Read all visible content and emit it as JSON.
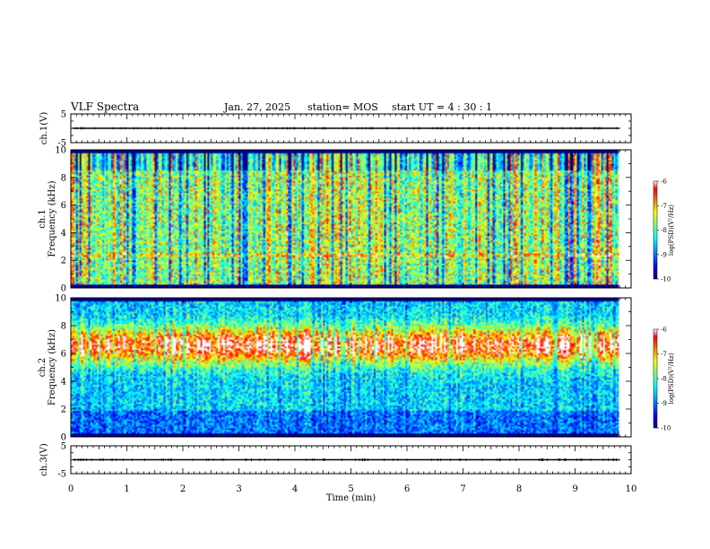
{
  "header": {
    "title": "VLF Spectra",
    "date": "Jan. 27, 2025",
    "station": "station= MOS",
    "start_ut": "start  UT  =   4 : 30 : 1"
  },
  "colors": {
    "background": "#ffffff",
    "axis": "#000000",
    "colormap": [
      "#00007f",
      "#0000ff",
      "#007fff",
      "#00ffff",
      "#7fff7f",
      "#ffff00",
      "#ff7f00",
      "#ff0000",
      "#ffffff"
    ]
  },
  "chart_data": [
    {
      "type": "line",
      "ylabel": "ch.1(V)",
      "xlim": [
        0,
        10
      ],
      "ylim": [
        -5,
        5
      ],
      "y_ticks": [
        "5",
        "-5"
      ],
      "trace_level": 0
    },
    {
      "type": "heatmap",
      "ylabel_top": "ch.1",
      "ylabel": "Frequency (kHz)",
      "xlim": [
        0,
        10
      ],
      "ylim": [
        0,
        10
      ],
      "y_ticks": [
        "0",
        "2",
        "4",
        "6",
        "8",
        "10"
      ],
      "data_end_min": 9.8,
      "colorbar": {
        "label": "log(PSD)(V²/Hz)",
        "range": [
          -10,
          -6
        ],
        "ticks": [
          "-6",
          "-7",
          "-8",
          "-9",
          "-10"
        ]
      },
      "character": "broadband-impulsive"
    },
    {
      "type": "heatmap",
      "ylabel_top": "ch.2",
      "ylabel": "Frequency (kHz)",
      "xlim": [
        0,
        10
      ],
      "ylim": [
        0,
        10
      ],
      "y_ticks": [
        "0",
        "2",
        "4",
        "6",
        "8",
        "10"
      ],
      "data_end_min": 9.8,
      "colorbar": {
        "label": "log(PSD)(V²/Hz)",
        "range": [
          -10,
          -6
        ],
        "ticks": [
          "-6",
          "-7",
          "-8",
          "-9",
          "-10"
        ]
      },
      "character": "band-intensified-5-8kHz"
    },
    {
      "type": "line",
      "ylabel": "ch.3(V)",
      "xlabel": "Time (min)",
      "xlim": [
        0,
        10
      ],
      "ylim": [
        -5,
        5
      ],
      "y_ticks": [
        "5",
        "-5"
      ],
      "x_ticks": [
        "0",
        "1",
        "2",
        "3",
        "4",
        "5",
        "6",
        "7",
        "8",
        "9",
        "10"
      ],
      "trace_level": 0
    }
  ]
}
